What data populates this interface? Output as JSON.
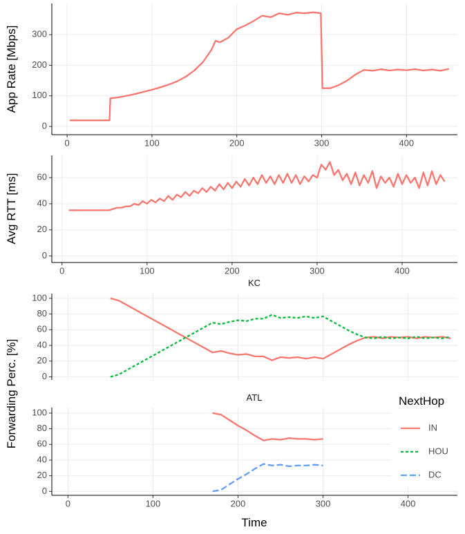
{
  "chart_data": [
    {
      "type": "line",
      "ylabel": "App Rate [Mbps]",
      "color": "#F8766D",
      "x": [
        3,
        50,
        51,
        60,
        70,
        80,
        90,
        100,
        110,
        120,
        130,
        140,
        150,
        160,
        170,
        175,
        180,
        190,
        200,
        210,
        220,
        230,
        240,
        250,
        260,
        270,
        280,
        290,
        299,
        301,
        310,
        320,
        330,
        340,
        350,
        360,
        370,
        380,
        390,
        400,
        410,
        420,
        430,
        440,
        450
      ],
      "values": [
        20,
        20,
        92,
        95,
        100,
        106,
        113,
        120,
        128,
        137,
        148,
        163,
        183,
        210,
        250,
        280,
        275,
        290,
        318,
        330,
        345,
        362,
        357,
        370,
        365,
        372,
        370,
        373,
        370,
        125,
        125,
        135,
        150,
        170,
        185,
        182,
        187,
        183,
        186,
        184,
        187,
        183,
        186,
        182,
        188
      ],
      "xlim": [
        -18,
        460
      ],
      "ylim": [
        -27,
        402
      ],
      "xticks": [
        0,
        100,
        200,
        300,
        400
      ],
      "yticks": [
        0,
        100,
        200,
        300
      ],
      "grid": true
    },
    {
      "type": "line",
      "ylabel": "Avg RTT [ms]",
      "color": "#F8766D",
      "x": [
        8,
        50,
        55,
        60,
        65,
        70,
        75,
        80,
        85,
        90,
        95,
        100,
        105,
        110,
        115,
        120,
        125,
        130,
        135,
        140,
        145,
        150,
        155,
        160,
        165,
        170,
        175,
        180,
        185,
        190,
        195,
        200,
        205,
        210,
        215,
        220,
        225,
        230,
        235,
        240,
        245,
        250,
        255,
        260,
        265,
        270,
        275,
        280,
        285,
        290,
        295,
        300,
        305,
        310,
        315,
        320,
        325,
        330,
        335,
        340,
        345,
        350,
        355,
        360,
        365,
        370,
        375,
        380,
        385,
        390,
        395,
        400,
        405,
        410,
        415,
        420,
        425,
        430,
        435,
        440,
        445,
        450
      ],
      "values": [
        35,
        35,
        35,
        36,
        37,
        37,
        38,
        38,
        40,
        39,
        42,
        40,
        43,
        41,
        44,
        42,
        46,
        43,
        47,
        45,
        49,
        46,
        50,
        48,
        52,
        49,
        53,
        50,
        55,
        51,
        56,
        52,
        57,
        53,
        59,
        54,
        60,
        55,
        62,
        56,
        61,
        55,
        62,
        56,
        63,
        56,
        62,
        55,
        61,
        57,
        62,
        60,
        70,
        66,
        72,
        62,
        66,
        58,
        63,
        55,
        64,
        54,
        62,
        56,
        65,
        52,
        61,
        56,
        60,
        53,
        63,
        55,
        62,
        56,
        60,
        52,
        64,
        54,
        65,
        55,
        62,
        57
      ],
      "xlim": [
        -12,
        465
      ],
      "ylim": [
        -5,
        77
      ],
      "xticks": [
        0,
        100,
        200,
        300,
        400
      ],
      "yticks": [
        0,
        20,
        40,
        60
      ],
      "grid": true
    },
    {
      "type": "line",
      "title": "KC",
      "ylabel": "Forwarding Perc. [%]",
      "x": [
        50,
        60,
        70,
        80,
        90,
        100,
        110,
        120,
        130,
        140,
        150,
        160,
        170,
        180,
        190,
        200,
        210,
        220,
        230,
        240,
        250,
        260,
        270,
        280,
        290,
        300,
        310,
        320,
        330,
        340,
        350,
        360,
        370,
        380,
        390,
        400,
        410,
        420,
        430,
        440,
        450
      ],
      "series": [
        {
          "name": "IN",
          "color": "#F8766D",
          "linestyle": "solid",
          "values": [
            100,
            97,
            91,
            85,
            79,
            73,
            67,
            61,
            55,
            49,
            43,
            37,
            31,
            33,
            30,
            28,
            29,
            26,
            26,
            21,
            25,
            24,
            25,
            23,
            25,
            23,
            29,
            35,
            41,
            46,
            50,
            51,
            49,
            51,
            50,
            51,
            49,
            51,
            50,
            51,
            49
          ]
        },
        {
          "name": "HOU",
          "color": "#00BA38",
          "linestyle": "dotted",
          "values": [
            0,
            3,
            9,
            15,
            21,
            27,
            33,
            39,
            45,
            51,
            57,
            63,
            69,
            67,
            70,
            72,
            71,
            74,
            74,
            79,
            75,
            76,
            75,
            77,
            75,
            77,
            71,
            65,
            59,
            54,
            50,
            49,
            51,
            49,
            50,
            49,
            51,
            49,
            50,
            49,
            51
          ]
        }
      ],
      "xlim": [
        -19,
        458
      ],
      "ylim": [
        -4,
        106
      ],
      "xticks": [
        0,
        100,
        200,
        300,
        400
      ],
      "x_tick_labels": false,
      "yticks": [
        0,
        20,
        40,
        60,
        80,
        100
      ],
      "grid": true
    },
    {
      "type": "line",
      "title": "ATL",
      "xlabel": "Time",
      "legend_title": "NextHop",
      "legend": "right",
      "x": [
        170,
        180,
        190,
        200,
        210,
        220,
        230,
        240,
        250,
        260,
        270,
        280,
        290,
        300
      ],
      "series": [
        {
          "name": "IN",
          "color": "#F8766D",
          "linestyle": "solid",
          "values": [
            100,
            98,
            91,
            84,
            78,
            71,
            65,
            67,
            66,
            68,
            67,
            67,
            66,
            67
          ]
        },
        {
          "name": "HOU",
          "color": "#00BA38",
          "linestyle": "dotted",
          "values": [
            null,
            null,
            null,
            null,
            null,
            null,
            null,
            null,
            null,
            null,
            null,
            null,
            null,
            null
          ]
        },
        {
          "name": "DC",
          "color": "#619CFF",
          "linestyle": "dashed",
          "values": [
            0,
            2,
            9,
            16,
            22,
            29,
            35,
            33,
            34,
            32,
            33,
            33,
            34,
            33
          ]
        }
      ],
      "xlim": [
        -19,
        458
      ],
      "ylim": [
        -5,
        107
      ],
      "xticks": [
        0,
        100,
        200,
        300,
        400
      ],
      "x_tick_labels": true,
      "yticks": [
        0,
        20,
        40,
        60,
        80,
        100
      ],
      "grid": true
    }
  ]
}
